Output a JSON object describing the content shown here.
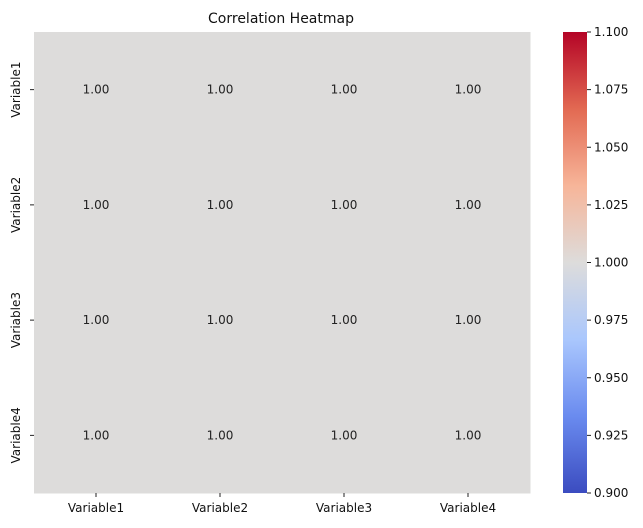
{
  "chart_data": {
    "type": "heatmap",
    "title": "Correlation Heatmap",
    "xlabel": "",
    "ylabel": "",
    "x_labels": [
      "Variable1",
      "Variable2",
      "Variable3",
      "Variable4"
    ],
    "y_labels": [
      "Variable1",
      "Variable2",
      "Variable3",
      "Variable4"
    ],
    "values": [
      [
        1.0,
        1.0,
        1.0,
        1.0
      ],
      [
        1.0,
        1.0,
        1.0,
        1.0
      ],
      [
        1.0,
        1.0,
        1.0,
        1.0
      ],
      [
        1.0,
        1.0,
        1.0,
        1.0
      ]
    ],
    "cell_labels": [
      [
        "1.00",
        "1.00",
        "1.00",
        "1.00"
      ],
      [
        "1.00",
        "1.00",
        "1.00",
        "1.00"
      ],
      [
        "1.00",
        "1.00",
        "1.00",
        "1.00"
      ],
      [
        "1.00",
        "1.00",
        "1.00",
        "1.00"
      ]
    ],
    "colorbar": {
      "range": [
        0.9,
        1.1
      ],
      "ticks": [
        0.9,
        0.925,
        0.95,
        0.975,
        1.0,
        1.025,
        1.05,
        1.075,
        1.1
      ],
      "tick_labels": [
        "0.900",
        "0.925",
        "0.950",
        "0.975",
        "1.000",
        "1.025",
        "1.050",
        "1.075",
        "1.100"
      ],
      "colormap": "coolwarm",
      "colormap_stops": [
        "#3b4cc0",
        "#6a8bef",
        "#aac7fd",
        "#dddcdb",
        "#f7b599",
        "#e26952",
        "#b40426"
      ]
    },
    "grid": false
  }
}
